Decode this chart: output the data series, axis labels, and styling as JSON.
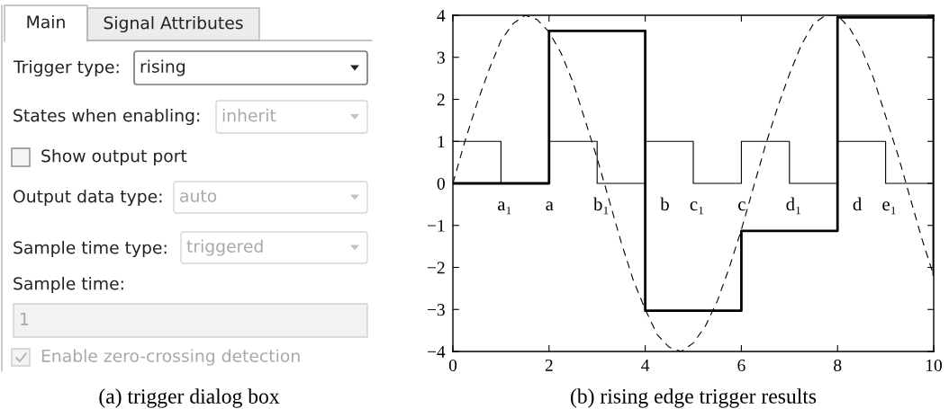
{
  "chart_data": [
    {
      "type": "other",
      "title": "(a) trigger dialog box",
      "annotations": [
        "Main",
        "Signal Attributes",
        "Trigger type:",
        "rising",
        "States when enabling:",
        "inherit",
        "Show output port",
        "Output data type:",
        "auto",
        "Sample time type:",
        "triggered",
        "Sample time:",
        "1",
        "Enable zero-crossing detection"
      ]
    },
    {
      "type": "step",
      "title": "(b) rising edge trigger results",
      "xlim": [
        0,
        10
      ],
      "ylim": [
        -4,
        4
      ],
      "xticks": [
        0,
        2,
        4,
        6,
        8,
        10
      ],
      "yticks": [
        -4,
        -3,
        -2,
        -1,
        0,
        1,
        2,
        3,
        4
      ],
      "grid": false,
      "series": [
        {
          "type": "line",
          "line_style": "dashed",
          "color": "#000000",
          "x": [
            0,
            0.25,
            0.5,
            0.75,
            1,
            1.25,
            1.5,
            1.75,
            2,
            2.25,
            2.5,
            2.75,
            3,
            3.25,
            3.5,
            3.75,
            4,
            4.25,
            4.5,
            4.75,
            5,
            5.25,
            5.5,
            5.75,
            6,
            6.25,
            6.5,
            6.75,
            7,
            7.25,
            7.5,
            7.75,
            8,
            8.25,
            8.5,
            8.75,
            9,
            9.25,
            9.5,
            9.75,
            10
          ],
          "values": [
            0.0,
            1.0,
            1.9,
            2.7,
            3.4,
            3.8,
            4.0,
            3.9,
            3.6,
            3.1,
            2.4,
            1.5,
            0.6,
            -0.4,
            -1.4,
            -2.3,
            -3.0,
            -3.6,
            -3.9,
            -4.0,
            -3.8,
            -3.4,
            -2.8,
            -2.0,
            -1.1,
            -0.1,
            0.9,
            1.8,
            2.6,
            3.3,
            3.8,
            4.0,
            4.0,
            3.7,
            3.2,
            2.5,
            1.6,
            0.7,
            -0.3,
            -1.3,
            -2.2
          ]
        },
        {
          "type": "step",
          "color": "#000000",
          "x": [
            0,
            1,
            2,
            3,
            4,
            5,
            6,
            7,
            8,
            9,
            10
          ],
          "values": [
            1,
            0,
            1,
            0,
            1,
            0,
            1,
            0,
            1,
            0,
            0
          ]
        },
        {
          "type": "step",
          "color": "#000000",
          "x": [
            0,
            2,
            4,
            6,
            8,
            10
          ],
          "values": [
            0,
            3.63,
            -3.03,
            -1.13,
            3.95,
            -2.18
          ]
        }
      ],
      "annotations": [
        {
          "text": "a₁",
          "x": 1,
          "y": 0
        },
        {
          "text": "a",
          "x": 2,
          "y": 0
        },
        {
          "text": "b₁",
          "x": 3,
          "y": 0
        },
        {
          "text": "b",
          "x": 4,
          "y": 0
        },
        {
          "text": "c₁",
          "x": 5,
          "y": 0
        },
        {
          "text": "c",
          "x": 6,
          "y": 0
        },
        {
          "text": "d₁",
          "x": 7,
          "y": 0
        },
        {
          "text": "d",
          "x": 8,
          "y": 0
        },
        {
          "text": "e₁",
          "x": 9,
          "y": 0
        }
      ]
    }
  ]
}
